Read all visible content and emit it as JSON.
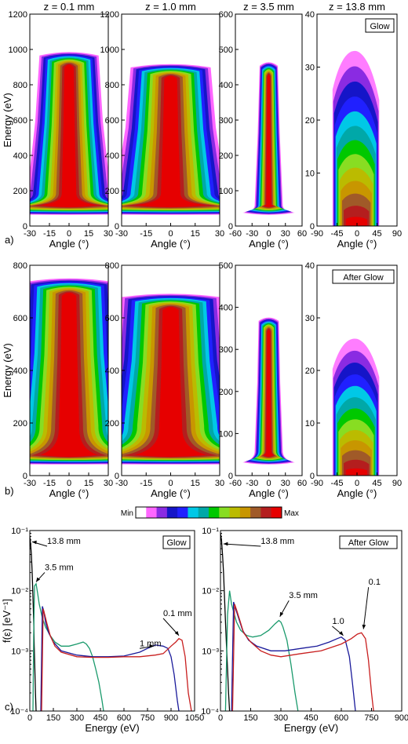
{
  "chart_data": [
    {
      "type": "heatmap",
      "id": "a1",
      "row": "a",
      "title": "z = 0.1 mm",
      "xlabel": "Angle (°)",
      "ylabel": "Energy (eV)",
      "xlim": [
        -30,
        30
      ],
      "ylim": [
        0,
        1200
      ],
      "xticks": [
        "-30",
        "-15",
        "0",
        "15",
        "30"
      ],
      "yticks": [
        "0",
        "200",
        "400",
        "600",
        "800",
        "1000",
        "1200"
      ],
      "shape": {
        "base": [
          0,
          100
        ],
        "neck": [
          190,
          28
        ],
        "top": [
          1000,
          20
        ],
        "halo": 12
      }
    },
    {
      "type": "heatmap",
      "id": "a2",
      "row": "a",
      "title": "z = 1.0 mm",
      "xlabel": "Angle (°)",
      "ylabel": "",
      "xlim": [
        -30,
        30
      ],
      "ylim": [
        0,
        1200
      ],
      "xticks": [
        "-30",
        "-15",
        "0",
        "15",
        "30"
      ],
      "yticks": [
        "0",
        "200",
        "400",
        "600",
        "800",
        "1000",
        "1200"
      ],
      "shape": {
        "base": [
          0,
          100
        ],
        "neck": [
          190,
          30
        ],
        "top": [
          930,
          22
        ],
        "halo": 12
      }
    },
    {
      "type": "heatmap",
      "id": "a3",
      "row": "a",
      "title": "z = 3.5 mm",
      "xlabel": "Angle (°)",
      "ylabel": "",
      "xlim": [
        -60,
        60
      ],
      "ylim": [
        0,
        600
      ],
      "xticks": [
        "-60",
        "-30",
        "0",
        "30",
        "60"
      ],
      "yticks": [
        "0",
        "100",
        "200",
        "300",
        "400",
        "500",
        "600"
      ],
      "shape": {
        "base": [
          0,
          40
        ],
        "neck": [
          60,
          22
        ],
        "top": [
          470,
          14
        ],
        "halo": 10
      }
    },
    {
      "type": "heatmap",
      "id": "a4",
      "row": "a",
      "title": "z = 13.8 mm",
      "label": "Glow",
      "xlabel": "Angle (°)",
      "ylabel": "",
      "xlim": [
        -90,
        90
      ],
      "ylim": [
        0,
        40
      ],
      "xticks": [
        "-90",
        "-45",
        "0",
        "45",
        "90"
      ],
      "yticks": [
        "0",
        "10",
        "20",
        "30",
        "40"
      ],
      "shape": {
        "wide": true,
        "top": 33,
        "xmin": -55,
        "xmax": 50
      }
    },
    {
      "type": "heatmap",
      "id": "b1",
      "row": "b",
      "title": "",
      "xlabel": "Angle (°)",
      "ylabel": "Energy (eV)",
      "xlim": [
        -30,
        30
      ],
      "ylim": [
        0,
        800
      ],
      "xticks": [
        "-30",
        "-15",
        "0",
        "15",
        "30"
      ],
      "yticks": [
        "0",
        "200",
        "400",
        "600",
        "800"
      ],
      "shape": {
        "base": [
          0,
          100
        ],
        "neck": [
          190,
          40
        ],
        "top": [
          760,
          32
        ],
        "halo": 12
      }
    },
    {
      "type": "heatmap",
      "id": "b2",
      "row": "b",
      "title": "",
      "xlabel": "Angle (°)",
      "ylabel": "",
      "xlim": [
        -30,
        30
      ],
      "ylim": [
        0,
        800
      ],
      "xticks": [
        "-30",
        "-15",
        "0",
        "15",
        "30"
      ],
      "yticks": [
        "0",
        "200",
        "400",
        "600",
        "800"
      ],
      "shape": {
        "base": [
          0,
          100
        ],
        "neck": [
          190,
          36
        ],
        "top": [
          700,
          28
        ],
        "halo": 12
      }
    },
    {
      "type": "heatmap",
      "id": "b3",
      "row": "b",
      "title": "",
      "xlabel": "Angle (°)",
      "ylabel": "",
      "xlim": [
        -60,
        60
      ],
      "ylim": [
        0,
        500
      ],
      "xticks": [
        "-60",
        "-30",
        "0",
        "30",
        "60"
      ],
      "yticks": [
        "0",
        "100",
        "200",
        "300",
        "400",
        "500"
      ],
      "shape": {
        "base": [
          0,
          40
        ],
        "neck": [
          60,
          22
        ],
        "top": [
          380,
          16
        ],
        "halo": 10
      }
    },
    {
      "type": "heatmap",
      "id": "b4",
      "row": "b",
      "title": "",
      "label": "After Glow",
      "xlabel": "Angle (°)",
      "ylabel": "",
      "xlim": [
        -90,
        90
      ],
      "ylim": [
        0,
        40
      ],
      "xticks": [
        "-90",
        "-45",
        "0",
        "45",
        "90"
      ],
      "yticks": [
        "0",
        "10",
        "20",
        "30",
        "40"
      ],
      "shape": {
        "wide": true,
        "top": 26,
        "xmin": -55,
        "xmax": 50
      }
    },
    {
      "type": "line",
      "id": "c1",
      "row": "c",
      "title": "",
      "label": "Glow",
      "xlabel": "Energy (eV)",
      "ylabel": "f(ε) [eV⁻¹]",
      "xlim": [
        0,
        1050
      ],
      "ylim": [
        0.0001,
        0.1
      ],
      "yscale": "log",
      "xticks": [
        "0",
        "150",
        "300",
        "450",
        "600",
        "750",
        "900",
        "1050"
      ],
      "yticks": [
        "10⁻⁴",
        "10⁻³",
        "10⁻²",
        "10⁻¹"
      ],
      "series": [
        {
          "name": "13.8 mm",
          "color": "#000000",
          "x": [
            0,
            5,
            10,
            15,
            20,
            25,
            28,
            32,
            36,
            40,
            45
          ],
          "y": [
            0.08,
            0.06,
            0.04,
            0.02,
            0.008,
            0.003,
            0.0012,
            0.0005,
            0.0002,
            0.0001,
            0.0001
          ]
        },
        {
          "name": "3.5 mm",
          "color": "#1a9a6c",
          "x": [
            20,
            25,
            30,
            40,
            50,
            60,
            80,
            100,
            130,
            160,
            200,
            250,
            300,
            340,
            360,
            380,
            400,
            420,
            440,
            460,
            470
          ],
          "y": [
            0.0001,
            0.002,
            0.012,
            0.013,
            0.009,
            0.006,
            0.0035,
            0.0025,
            0.0018,
            0.0014,
            0.0012,
            0.0012,
            0.0013,
            0.0014,
            0.0013,
            0.0011,
            0.0008,
            0.0005,
            0.0003,
            0.00015,
            0.0001
          ]
        },
        {
          "name": "1 mm",
          "color": "#1a1a9a",
          "x": [
            70,
            80,
            90,
            100,
            120,
            150,
            200,
            300,
            400,
            500,
            600,
            700,
            750,
            800,
            850,
            880,
            900,
            920,
            940,
            950
          ],
          "y": [
            0.0001,
            0.0055,
            0.0045,
            0.003,
            0.002,
            0.0014,
            0.001,
            0.00085,
            0.0008,
            0.0008,
            0.00082,
            0.00095,
            0.0011,
            0.00125,
            0.0012,
            0.0011,
            0.0008,
            0.0004,
            0.00015,
            0.0001
          ]
        },
        {
          "name": "0.1 mm",
          "color": "#c81e1e",
          "x": [
            75,
            85,
            95,
            110,
            130,
            160,
            200,
            300,
            400,
            500,
            600,
            700,
            800,
            850,
            900,
            930,
            950,
            970,
            990,
            1010,
            1030
          ],
          "y": [
            0.0001,
            0.005,
            0.004,
            0.0028,
            0.0018,
            0.0012,
            0.00095,
            0.0008,
            0.00078,
            0.00078,
            0.0008,
            0.0008,
            0.00085,
            0.0009,
            0.0012,
            0.0014,
            0.0016,
            0.0015,
            0.0008,
            0.0002,
            0.0001
          ]
        }
      ],
      "annotations": [
        {
          "text": "13.8 mm",
          "x": 110,
          "y": 0.06,
          "tx": 15,
          "ty": 0.065
        },
        {
          "text": "3.5 mm",
          "x": 95,
          "y": 0.022,
          "tx": 40,
          "ty": 0.014
        },
        {
          "text": "0.1 mm",
          "x": 850,
          "y": 0.0038,
          "tx": 950,
          "ty": 0.0018
        },
        {
          "text": "1 mm",
          "x": 700,
          "y": 0.0012,
          "tx": 790,
          "ty": 0.0012
        }
      ]
    },
    {
      "type": "line",
      "id": "c2",
      "row": "c",
      "title": "",
      "label": "After Glow",
      "xlabel": "Energy (eV)",
      "ylabel": "",
      "xlim": [
        0,
        900
      ],
      "ylim": [
        0.0001,
        0.1
      ],
      "yscale": "log",
      "xticks": [
        "0",
        "150",
        "300",
        "450",
        "600",
        "750",
        "900"
      ],
      "yticks": [
        "10⁻⁴",
        "10⁻³",
        "10⁻²",
        "10⁻¹"
      ],
      "series": [
        {
          "name": "13.8 mm",
          "color": "#000000",
          "x": [
            0,
            5,
            10,
            15,
            20,
            25,
            30,
            35,
            40,
            45
          ],
          "y": [
            0.09,
            0.07,
            0.04,
            0.02,
            0.008,
            0.003,
            0.0012,
            0.0005,
            0.0002,
            0.0001
          ]
        },
        {
          "name": "3.5 mm",
          "color": "#1a9a6c",
          "x": [
            25,
            35,
            45,
            55,
            65,
            80,
            100,
            130,
            160,
            200,
            240,
            270,
            290,
            300,
            310,
            330,
            350,
            370,
            385
          ],
          "y": [
            0.0001,
            0.004,
            0.01,
            0.006,
            0.0045,
            0.003,
            0.0022,
            0.0018,
            0.0017,
            0.0018,
            0.0022,
            0.0028,
            0.0032,
            0.003,
            0.0025,
            0.0015,
            0.0006,
            0.0002,
            0.0001
          ]
        },
        {
          "name": "1.0",
          "color": "#1a1a9a",
          "x": [
            55,
            65,
            75,
            90,
            110,
            140,
            180,
            250,
            320,
            400,
            480,
            540,
            580,
            600,
            620,
            640,
            655,
            670
          ],
          "y": [
            0.0001,
            0.0065,
            0.005,
            0.0035,
            0.0022,
            0.0015,
            0.0012,
            0.001,
            0.001,
            0.0011,
            0.0012,
            0.0014,
            0.0016,
            0.0017,
            0.0015,
            0.0008,
            0.0003,
            0.0001
          ]
        },
        {
          "name": "0.1",
          "color": "#c81e1e",
          "x": [
            60,
            70,
            80,
            95,
            115,
            150,
            200,
            250,
            300,
            400,
            500,
            600,
            650,
            680,
            700,
            720,
            735,
            750,
            760
          ],
          "y": [
            0.0001,
            0.006,
            0.0048,
            0.0033,
            0.002,
            0.0014,
            0.001,
            0.00085,
            0.0008,
            0.0009,
            0.001,
            0.0013,
            0.0016,
            0.0019,
            0.002,
            0.0016,
            0.0007,
            0.0002,
            0.0001
          ]
        }
      ],
      "annotations": [
        {
          "text": "13.8 mm",
          "x": 200,
          "y": 0.06,
          "tx": 15,
          "ty": 0.06
        },
        {
          "text": "3.5 mm",
          "x": 340,
          "y": 0.0075,
          "tx": 295,
          "ty": 0.0037
        },
        {
          "text": "1.0",
          "x": 555,
          "y": 0.0028,
          "tx": 610,
          "ty": 0.0018
        },
        {
          "text": "0.1",
          "x": 735,
          "y": 0.0125,
          "tx": 710,
          "ty": 0.0023
        }
      ]
    }
  ],
  "colorbar": {
    "min_label": "Min",
    "max_label": "Max",
    "colors": [
      "#ffffff",
      "#ff66ff",
      "#8a2be2",
      "#1515c8",
      "#2020ff",
      "#00c8e6",
      "#00a8a8",
      "#00c800",
      "#88dd22",
      "#bbbb00",
      "#c89600",
      "#a05a28",
      "#b41e1e",
      "#e60000"
    ]
  },
  "panel_letters": {
    "a": "a)",
    "b": "b)",
    "c": "c)"
  }
}
